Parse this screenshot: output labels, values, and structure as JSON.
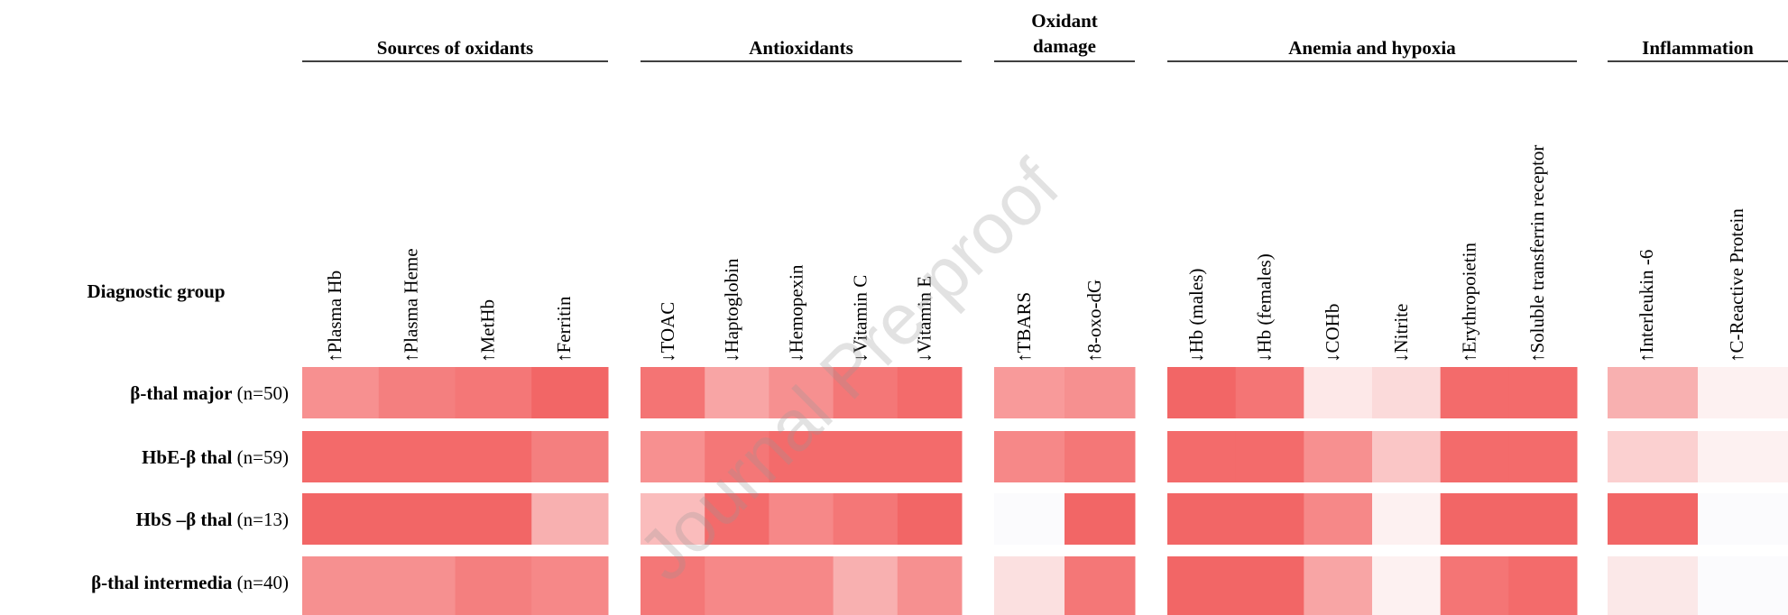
{
  "header": {
    "row_label": "Diagnostic group"
  },
  "groups": [
    {
      "title": "Sources of oxidants",
      "columns": [
        "↑Plasma Hb",
        "↑Plasma Heme",
        "↑MetHb",
        "↑Ferritin"
      ]
    },
    {
      "title": "Antioxidants",
      "columns": [
        "↓TOAC",
        "↓Haptoglobin",
        "↓Hemopexin",
        "↓Vitamin C",
        "↓Vitamin E"
      ]
    },
    {
      "title": "Oxidant damage",
      "columns": [
        "↑TBARS",
        "↑8-oxo-dG"
      ]
    },
    {
      "title": "Anemia and hypoxia",
      "columns": [
        "↓Hb (males)",
        "↓Hb (females)",
        "↓COHb",
        "↓Nitrite",
        "↑Erythropoietin",
        "↑Soluble transferrin receptor"
      ]
    },
    {
      "title": "Inflammation",
      "columns": [
        "↑Interleukin -6",
        "↑C-Reactive Protein"
      ]
    }
  ],
  "rows": [
    {
      "name": "β-thal major",
      "n": "(n=50)",
      "colors": [
        [
          "#f79090",
          "#f47f7f",
          "#f47777",
          "#f26666"
        ],
        [
          "#f47474",
          "#f8a5a5",
          "#f69090",
          "#f47777",
          "#f36b6b"
        ],
        [
          "#f89a9a",
          "#f69090"
        ],
        [
          "#f26666",
          "#f47575",
          "#fde8e8",
          "#fbdada",
          "#f36b6b",
          "#f36b6b"
        ],
        [
          "#f8b0b0",
          "#fdf1f1"
        ]
      ]
    },
    {
      "name": "HbE-β thal",
      "n": "(n=59)",
      "colors": [
        [
          "#f36a6a",
          "#f36a6a",
          "#f36a6a",
          "#f47f7f"
        ],
        [
          "#f79090",
          "#f47777",
          "#f36b6b",
          "#f36b6b",
          "#f36b6b"
        ],
        [
          "#f68888",
          "#f47777"
        ],
        [
          "#f36b6b",
          "#f36b6b",
          "#f79090",
          "#fac6c6",
          "#f36b6b",
          "#f36b6b"
        ],
        [
          "#fbd0d0",
          "#fdf1f1"
        ]
      ]
    },
    {
      "name": "HbS –β thal",
      "n": "(n=13)",
      "colors": [
        [
          "#f26666",
          "#f26666",
          "#f26666",
          "#f8b0b0"
        ],
        [
          "#fabcbc",
          "#f36b6b",
          "#f68888",
          "#f47777",
          "#f26666"
        ],
        [
          "#fbfbfd",
          "#f26666"
        ],
        [
          "#f26666",
          "#f26666",
          "#f68888",
          "#fdf1f1",
          "#f26666",
          "#f26666"
        ],
        [
          "#f26666",
          "#fbfbfd"
        ]
      ]
    },
    {
      "name": "β-thal intermedia",
      "n": "(n=40)",
      "colors": [
        [
          "#f69090",
          "#f69090",
          "#f47f7f",
          "#f68888"
        ],
        [
          "#f47777",
          "#f68888",
          "#f68888",
          "#f8b0b0",
          "#f69090"
        ],
        [
          "#fbe0e0",
          "#f47777"
        ],
        [
          "#f26666",
          "#f26666",
          "#f8a5a5",
          "#fdf1f1",
          "#f47575",
          "#f36b6b"
        ],
        [
          "#fbe8e8",
          "#fbfbfd"
        ]
      ]
    }
  ],
  "watermark": "Journal Pre-proof"
}
